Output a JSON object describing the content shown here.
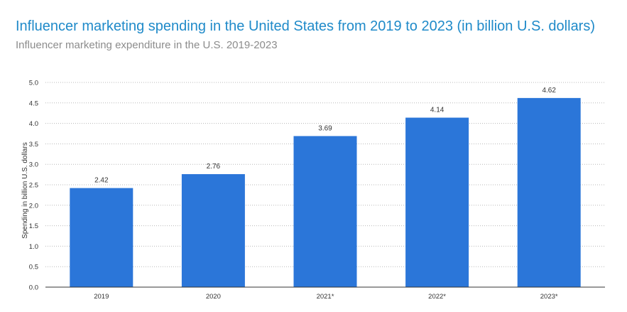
{
  "header": {
    "title": "Influencer marketing spending in the United States from 2019 to 2023 (in billion U.S. dollars)",
    "subtitle": "Influencer marketing expenditure in the U.S. 2019-2023"
  },
  "colors": {
    "bar": "#2b76d9",
    "title": "#1f8ac9",
    "subtitle": "#8c8c8c",
    "grid": "#b8b8b8",
    "axis": "#333333"
  },
  "chart_data": {
    "type": "bar",
    "title": "Influencer marketing spending in the United States from 2019 to 2023 (in billion U.S. dollars)",
    "subtitle": "Influencer marketing expenditure in the U.S. 2019-2023",
    "categories": [
      "2019",
      "2020",
      "2021*",
      "2022*",
      "2023*"
    ],
    "values": [
      2.42,
      2.76,
      3.69,
      4.14,
      4.62
    ],
    "value_labels": [
      "2.42",
      "2.76",
      "3.69",
      "4.14",
      "4.62"
    ],
    "xlabel": "",
    "ylabel": "Spending in billion U.S. dollars",
    "ylim": [
      0,
      5
    ],
    "yticks": [
      "0.0",
      "0.5",
      "1.0",
      "1.5",
      "2.0",
      "2.5",
      "3.0",
      "3.5",
      "4.0",
      "4.5",
      "5.0"
    ],
    "grid": true,
    "grid_style": "dotted",
    "legend": "none"
  }
}
